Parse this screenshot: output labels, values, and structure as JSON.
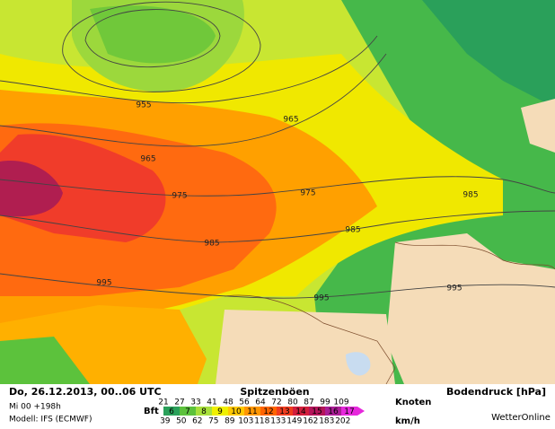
{
  "map": {
    "isobar_labels": [
      955,
      965,
      965,
      975,
      975,
      985,
      985,
      985,
      995,
      995,
      995
    ]
  },
  "footer": {
    "date": "Do, 26.12.2013, 00..06 UTC",
    "run": "Mi 00 +198h",
    "model": "Modell: IFS (ECMWF)",
    "gust_title": "Spitzenböen",
    "pressure_title": "Bodendruck [hPa]",
    "brand": "WetterOnline",
    "scale": {
      "unit_label": "Bft",
      "knots_label": "Knoten",
      "kmh_label": "km/h",
      "bft": [
        6,
        7,
        8,
        9,
        10,
        11,
        12,
        13,
        14,
        15,
        16,
        17
      ],
      "colors": [
        "#2aa05a",
        "#5cc23c",
        "#a8e03c",
        "#f0f000",
        "#ffc800",
        "#ff9600",
        "#ff6400",
        "#f03c1e",
        "#d21e3c",
        "#b4145a",
        "#aa1e96",
        "#e628dc"
      ],
      "knots": [
        21,
        27,
        33,
        41,
        48,
        56,
        64,
        72,
        80,
        87,
        99,
        109
      ],
      "kmh": [
        39,
        50,
        62,
        75,
        89,
        103,
        118,
        133,
        149,
        162,
        183,
        202
      ]
    }
  }
}
